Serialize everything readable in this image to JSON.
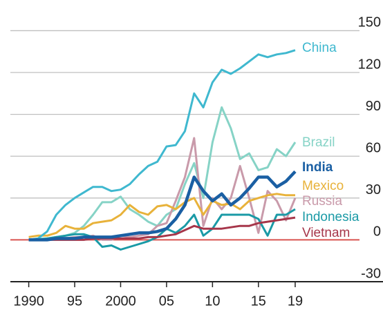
{
  "chart_data": {
    "type": "line",
    "x": [
      1990,
      1991,
      1992,
      1993,
      1994,
      1995,
      1996,
      1997,
      1998,
      1999,
      2000,
      2001,
      2002,
      2003,
      2004,
      2005,
      2006,
      2007,
      2008,
      2009,
      2010,
      2011,
      2012,
      2013,
      2014,
      2015,
      2016,
      2017,
      2018,
      2019
    ],
    "series": [
      {
        "name": "China",
        "color": "#3fb8cf",
        "values": [
          0,
          1,
          6,
          18,
          25,
          30,
          34,
          38,
          38,
          35,
          36,
          40,
          47,
          53,
          56,
          67,
          68,
          78,
          105,
          95,
          113,
          122,
          119,
          123,
          128,
          133,
          131,
          133,
          134,
          136
        ]
      },
      {
        "name": "Brazil",
        "color": "#86d3c6",
        "values": [
          0,
          1,
          1,
          2,
          3,
          5,
          10,
          18,
          27,
          27,
          31,
          22,
          18,
          13,
          10,
          18,
          22,
          40,
          55,
          30,
          70,
          95,
          80,
          58,
          62,
          50,
          52,
          65,
          60,
          70
        ]
      },
      {
        "name": "India",
        "color": "#1a5fa3",
        "values": [
          0,
          0,
          0,
          1,
          1,
          1,
          2,
          2,
          2,
          2,
          3,
          4,
          5,
          5,
          6,
          8,
          15,
          25,
          45,
          35,
          28,
          33,
          25,
          30,
          37,
          45,
          45,
          38,
          42,
          49
        ]
      },
      {
        "name": "Mexico",
        "color": "#e8b23a",
        "values": [
          2,
          3,
          3,
          5,
          10,
          8,
          8,
          12,
          13,
          14,
          18,
          25,
          20,
          18,
          24,
          25,
          22,
          27,
          30,
          18,
          28,
          25,
          26,
          22,
          28,
          30,
          32,
          33,
          32,
          32
        ]
      },
      {
        "name": "Russia",
        "color": "#c99aaa",
        "values": [
          0,
          0,
          0,
          1,
          1,
          2,
          2,
          3,
          0,
          0,
          3,
          2,
          3,
          4,
          10,
          12,
          28,
          45,
          73,
          10,
          30,
          22,
          30,
          53,
          30,
          5,
          35,
          28,
          14,
          30
        ]
      },
      {
        "name": "Indonesia",
        "color": "#1a9aa6",
        "values": [
          0,
          0,
          1,
          2,
          3,
          4,
          4,
          2,
          -5,
          -4,
          -7,
          -5,
          -3,
          -1,
          2,
          8,
          5,
          10,
          18,
          3,
          8,
          18,
          18,
          18,
          18,
          15,
          3,
          18,
          18,
          22
        ]
      },
      {
        "name": "Vietnam",
        "color": "#a6364a",
        "values": [
          0,
          0,
          0,
          0,
          0,
          0,
          0,
          1,
          1,
          1,
          1,
          1,
          1,
          2,
          2,
          3,
          4,
          7,
          10,
          8,
          8,
          8,
          9,
          10,
          10,
          12,
          13,
          14,
          15,
          16
        ]
      }
    ],
    "xlim": [
      1988,
      2026
    ],
    "xticks": [
      1990,
      {
        "value": 1995,
        "label": "95"
      },
      2000,
      {
        "value": 2005,
        "label": "05"
      },
      {
        "value": 2010,
        "label": "10"
      },
      {
        "value": 2015,
        "label": "15"
      },
      {
        "value": 2019,
        "label": "19"
      }
    ],
    "ylim": [
      -30,
      172
    ],
    "yticks": [
      -30,
      0,
      30,
      60,
      90,
      120,
      150
    ],
    "grid": true,
    "zero_line_color": "#d9534f"
  }
}
